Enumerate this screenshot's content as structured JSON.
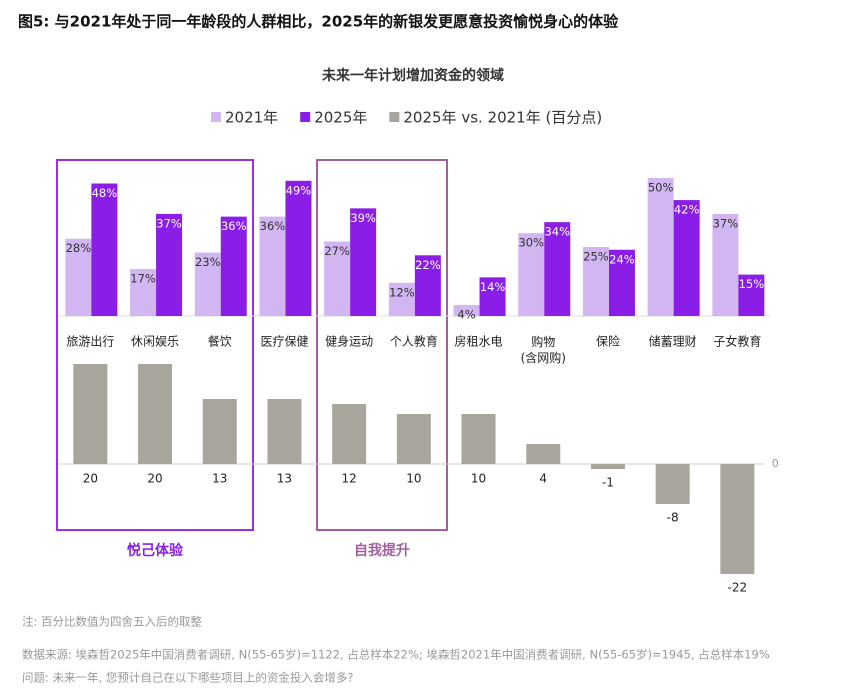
{
  "header": {
    "title": "图5: 与2021年处于同一年龄段的人群相比，2025年的新银发更愿意投资愉悦身心的体验"
  },
  "chart_data": {
    "type": "bar",
    "title": "未来一年计划增加资金的领域",
    "categories": [
      "旅游出行",
      "休闲娱乐",
      "餐饮",
      "医疗保健",
      "健身运动",
      "个人教育",
      "房租水电",
      "购物\n(含网购)",
      "保险",
      "储蓄理财",
      "子女教育"
    ],
    "series": [
      {
        "name": "2021年",
        "color": "#d2b6f2",
        "values": [
          28,
          17,
          23,
          36,
          27,
          12,
          4,
          30,
          25,
          50,
          37
        ],
        "value_labels": [
          "28%",
          "17%",
          "23%",
          "36%",
          "27%",
          "12%",
          "4%",
          "30%",
          "25%",
          "50%",
          "37%"
        ]
      },
      {
        "name": "2025年",
        "color": "#8a1ee6",
        "values": [
          48,
          37,
          36,
          49,
          39,
          22,
          14,
          34,
          24,
          42,
          15
        ],
        "value_labels": [
          "48%",
          "37%",
          "36%",
          "49%",
          "39%",
          "22%",
          "14%",
          "34%",
          "24%",
          "42%",
          "15%"
        ]
      },
      {
        "name": "2025年 vs. 2021年 (百分点)",
        "color": "#a8a59c",
        "axis": "y2",
        "values": [
          20,
          20,
          13,
          13,
          12,
          10,
          10,
          4,
          -1,
          -8,
          -22
        ]
      }
    ],
    "ylim": [
      0,
      50
    ],
    "y2lim": [
      -22,
      20
    ],
    "y2ticks": [
      0
    ],
    "annotations": [
      "悦己体验",
      "自我提升"
    ]
  },
  "notes": [
    "注: 百分比数值为四舍五入后的取整",
    "数据来源: 埃森哲2025年中国消费者调研, N(55-65岁)=1122, 占总样本22%; 埃森哲2021年中国消费者调研, N(55-65岁)=1945, 占总样本19%",
    "问题: 未来一年, 您预计自己在以下哪些项目上的资金投入会增多?"
  ]
}
